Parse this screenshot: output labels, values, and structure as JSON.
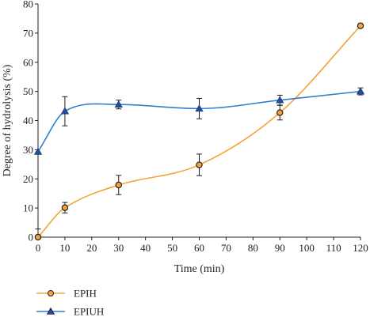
{
  "chart_data": {
    "type": "line",
    "xlabel": "Time (min)",
    "ylabel": "Degree of hydrolysis (%)",
    "xlim": [
      0,
      120
    ],
    "ylim": [
      0,
      80
    ],
    "x_ticks": [
      0,
      10,
      20,
      30,
      40,
      50,
      60,
      70,
      80,
      90,
      100,
      110,
      120
    ],
    "y_ticks": [
      0,
      10,
      20,
      30,
      40,
      50,
      60,
      70,
      80
    ],
    "x_tick_labels": [
      "0",
      "10",
      "20",
      "30",
      "40",
      "50",
      "60",
      "70",
      "80",
      "90",
      "100",
      "110",
      "120"
    ],
    "y_tick_labels": [
      "0",
      "10",
      "20",
      "30",
      "40",
      "50",
      "60",
      "70",
      "80"
    ],
    "grid": false,
    "legend_position": "bottom-left",
    "series": [
      {
        "name": "EPIH",
        "color": "#f5a33a",
        "marker": "circle",
        "x": [
          0,
          10,
          30,
          60,
          90,
          120
        ],
        "y": [
          0,
          10.1,
          17.9,
          24.8,
          42.7,
          72.5
        ],
        "error": [
          2.8,
          1.8,
          3.3,
          3.7,
          2.5,
          0
        ]
      },
      {
        "name": "EPIUH",
        "color": "#2f7fcf",
        "marker": "triangle",
        "x": [
          0,
          10,
          30,
          60,
          90,
          120
        ],
        "y": [
          29.3,
          43.2,
          45.5,
          44.1,
          47.0,
          50.0
        ],
        "error": [
          0,
          5.0,
          1.5,
          3.5,
          1.7,
          1.2
        ]
      }
    ]
  }
}
